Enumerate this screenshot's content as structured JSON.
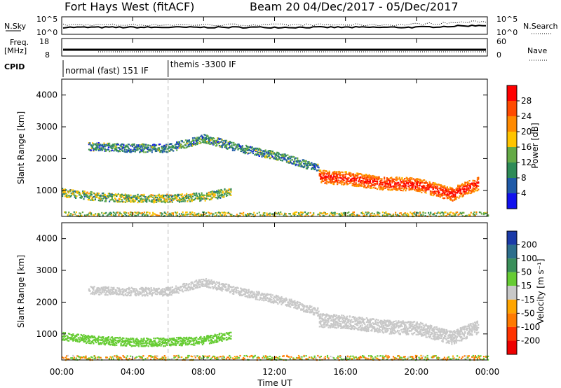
{
  "header": {
    "station": "Fort Hays West (fitACF)",
    "beam": "Beam 20",
    "daterange": "04/Dec/2017 - 05/Dec/2017"
  },
  "top_panels": {
    "nsky_label": "N.Sky",
    "nsky_ticks": [
      "10^5",
      "10^0"
    ],
    "nsearch_label": "N.Search",
    "nsearch_ticks": [
      "10^5",
      "10^0"
    ],
    "freq_label_1": "Freq.",
    "freq_label_2": "[MHz]",
    "freq_ticks": [
      "18",
      "8"
    ],
    "nave_label": "Nave",
    "nave_ticks": [
      "60",
      "0"
    ],
    "cpid_label": "CPID",
    "cpid_segments": [
      {
        "text": "normal (fast) 151 IF",
        "start_hour": 0
      },
      {
        "text": "themis -3300 IF",
        "start_hour": 6
      }
    ]
  },
  "xaxis": {
    "label": "Time UT",
    "ticks": [
      "00:00",
      "04:00",
      "08:00",
      "12:00",
      "16:00",
      "20:00",
      "00:00"
    ]
  },
  "colorbars": {
    "power": {
      "label": "Power [dB]",
      "ticks": [
        "28",
        "24",
        "20",
        "16",
        "12",
        "8",
        "4"
      ],
      "colors": [
        "#ff0000",
        "#ff4a00",
        "#ff8a00",
        "#ffc400",
        "#64aa46",
        "#2e8b57",
        "#1f5aa8",
        "#1111ee"
      ]
    },
    "velocity": {
      "label": "Velocity [m s⁻¹]",
      "ticks": [
        "200",
        "100",
        "50",
        "15",
        "-15",
        "-50",
        "-100",
        "-200"
      ],
      "colors": [
        "#1a3aa8",
        "#2d6e8c",
        "#3a8f5a",
        "#66cc33",
        "#c8c8c8",
        "#ffa500",
        "#ff7a00",
        "#ff3300",
        "#ee0000"
      ]
    }
  },
  "chart_data": [
    {
      "type": "heatmap",
      "title": "Power",
      "xlabel": "Time UT",
      "ylabel": "Slant Range [km]",
      "xlim_hours": [
        0,
        24
      ],
      "ylim": [
        180,
        4500
      ],
      "yticks": [
        "1000",
        "2000",
        "3000",
        "4000"
      ],
      "colorbar_label": "Power [dB]",
      "series": [
        {
          "region": "near-range scatter",
          "time_hours": [
            0,
            2,
            4,
            6,
            8,
            9.5
          ],
          "range_km": [
            950,
            820,
            760,
            770,
            820,
            970
          ],
          "power_db": 14
        },
        {
          "region": "upper band",
          "time_hours": [
            1.5,
            4,
            6,
            8,
            10,
            12.5,
            14.5
          ],
          "range_km": [
            2400,
            2350,
            2350,
            2650,
            2350,
            2050,
            1700
          ],
          "power_db": 10
        },
        {
          "region": "strong band",
          "time_hours": [
            14.5,
            16,
            18,
            20,
            22,
            23.5
          ],
          "range_km": [
            1450,
            1400,
            1250,
            1200,
            900,
            1250
          ],
          "power_db": 26
        },
        {
          "region": "ground scatter",
          "time_hours": [
            0,
            24
          ],
          "range_km": [
            250,
            250
          ],
          "power_db": 16
        }
      ]
    },
    {
      "type": "heatmap",
      "title": "Velocity",
      "xlabel": "Time UT",
      "ylabel": "Slant Range [km]",
      "xlim_hours": [
        0,
        24
      ],
      "ylim": [
        180,
        4500
      ],
      "yticks": [
        "1000",
        "2000",
        "3000",
        "4000"
      ],
      "colorbar_label": "Velocity [m s⁻¹]",
      "series": [
        {
          "region": "near-range scatter",
          "time_hours": [
            0,
            2,
            4,
            6,
            8,
            9.5
          ],
          "range_km": [
            950,
            820,
            760,
            770,
            820,
            970
          ],
          "velocity_ms": 30
        },
        {
          "region": "upper band",
          "time_hours": [
            1.5,
            4,
            6,
            8,
            10,
            12.5,
            14.5
          ],
          "range_km": [
            2400,
            2350,
            2350,
            2650,
            2350,
            2050,
            1700
          ],
          "velocity_ms": 0
        },
        {
          "region": "strong band",
          "time_hours": [
            14.5,
            16,
            18,
            20,
            22,
            23.5
          ],
          "range_km": [
            1450,
            1400,
            1250,
            1200,
            900,
            1250
          ],
          "velocity_ms": 0
        },
        {
          "region": "ground scatter",
          "time_hours": [
            0,
            24
          ],
          "range_km": [
            250,
            250
          ],
          "velocity_ms": -60
        }
      ]
    }
  ]
}
